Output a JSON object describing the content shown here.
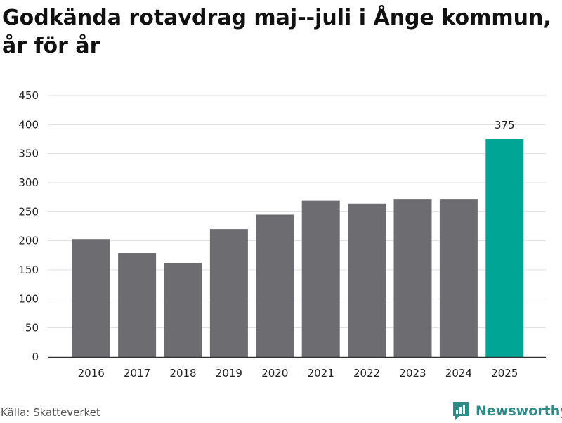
{
  "title": "Godkända rotavdrag maj--juli i Ånge kommun, år för år",
  "source": "Källa: Skatteverket",
  "brand": {
    "name": "Newsworthy",
    "icon": "newsworthy-logo-icon",
    "color": "#2e8b86"
  },
  "colors": {
    "bar_default": "#6d6c71",
    "bar_highlight": "#00a596",
    "grid": "#e1e1e1",
    "axis": "#333333"
  },
  "chart_data": {
    "type": "bar",
    "title": "Godkända rotavdrag maj--juli i Ånge kommun, år för år",
    "xlabel": "",
    "ylabel": "",
    "categories": [
      "2016",
      "2017",
      "2018",
      "2019",
      "2020",
      "2021",
      "2022",
      "2023",
      "2024",
      "2025"
    ],
    "values": [
      203,
      179,
      161,
      220,
      245,
      269,
      264,
      272,
      272,
      375
    ],
    "highlight_index": 9,
    "data_labels": {
      "2025": "375"
    },
    "ylim": [
      0,
      450
    ],
    "yticks": [
      0,
      50,
      100,
      150,
      200,
      250,
      300,
      350,
      400,
      450
    ],
    "grid": true,
    "legend": "none"
  }
}
